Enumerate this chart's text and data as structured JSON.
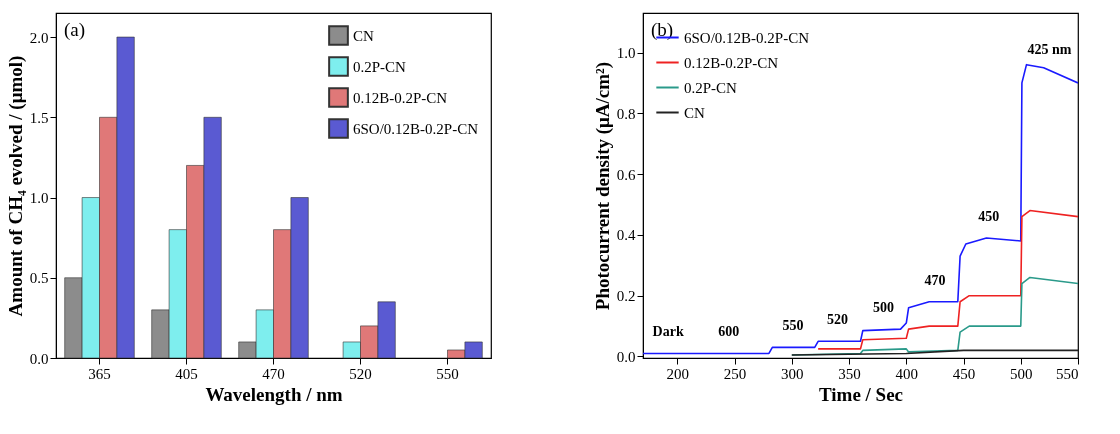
{
  "chart_data": [
    {
      "type": "bar",
      "xlabel": "Wavelength / nm",
      "ylabel": "Amount of CH₄ evolved / (μmol)",
      "categories": [
        "365",
        "405",
        "470",
        "520",
        "550"
      ],
      "series": [
        {
          "name": "CN",
          "color": "#8c8c8c",
          "values": [
            0.5,
            0.3,
            0.1,
            null,
            null
          ]
        },
        {
          "name": "0.2P-CN",
          "color": "#7eeeee",
          "values": [
            1.0,
            0.8,
            0.3,
            0.1,
            null
          ]
        },
        {
          "name": "0.12B-0.2P-CN",
          "color": "#e07878",
          "values": [
            1.5,
            1.2,
            0.8,
            0.2,
            0.05
          ]
        },
        {
          "name": "6SO/0.12B-0.2P-CN",
          "color": "#5a5ad2",
          "values": [
            2.0,
            1.5,
            1.0,
            0.35,
            0.1
          ]
        }
      ],
      "ylim": [
        0,
        2.15
      ],
      "yticks": [
        {
          "value": 0,
          "label": "0.0"
        },
        {
          "value": 0.5,
          "label": "0.5"
        },
        {
          "value": 1,
          "label": "1.0"
        },
        {
          "value": 1.5,
          "label": "1.5"
        },
        {
          "value": 2,
          "label": "2.0"
        }
      ],
      "grid": false,
      "legend": "top right",
      "annotations": [
        "(a)"
      ]
    },
    {
      "type": "line",
      "xlabel": "Time / Sec",
      "ylabel": "Photocurrent density (μA/cm²)",
      "series": [
        {
          "name": "6SO/0.12B-0.2P-CN",
          "color": "#1a1aff",
          "x": [
            170,
            280,
            283,
            320,
            323,
            360,
            362,
            395,
            400,
            402,
            420,
            445,
            447,
            452,
            470,
            500,
            501,
            505,
            520,
            550
          ],
          "values": [
            0.01,
            0.01,
            0.03,
            0.03,
            0.05,
            0.05,
            0.085,
            0.09,
            0.11,
            0.16,
            0.18,
            0.18,
            0.33,
            0.37,
            0.39,
            0.38,
            0.9,
            0.96,
            0.95,
            0.9
          ]
        },
        {
          "name": "0.12B-0.2P-CN",
          "color": "#ee2222",
          "x": [
            323,
            360,
            362,
            400,
            402,
            420,
            445,
            447,
            455,
            500,
            501,
            508,
            550
          ],
          "values": [
            0.025,
            0.025,
            0.055,
            0.06,
            0.09,
            0.1,
            0.1,
            0.18,
            0.2,
            0.2,
            0.46,
            0.48,
            0.46
          ]
        },
        {
          "name": "0.2P-CN",
          "color": "#2a9a8a",
          "x": [
            300,
            360,
            362,
            400,
            402,
            445,
            447,
            455,
            500,
            501,
            508,
            550
          ],
          "values": [
            0.005,
            0.01,
            0.02,
            0.025,
            0.015,
            0.02,
            0.08,
            0.1,
            0.1,
            0.24,
            0.26,
            0.24
          ]
        },
        {
          "name": "CN",
          "color": "#222222",
          "x": [
            300,
            400,
            450,
            550
          ],
          "values": [
            0.005,
            0.01,
            0.02,
            0.02
          ]
        }
      ],
      "xlim": [
        170,
        550
      ],
      "xticks": [
        200,
        250,
        300,
        350,
        400,
        450,
        500,
        550
      ],
      "ylim": [
        -0.005,
        1.13
      ],
      "yticks": [
        {
          "value": 0,
          "label": "0.0"
        },
        {
          "value": 0.2,
          "label": "0.2"
        },
        {
          "value": 0.4,
          "label": "0.4"
        },
        {
          "value": 0.6,
          "label": "0.6"
        },
        {
          "value": 0.8,
          "label": "0.8"
        },
        {
          "value": 1,
          "label": "1.0"
        }
      ],
      "grid": false,
      "legend": "top left",
      "marker": "none",
      "line_style": "solid",
      "annotations": [
        "(b)",
        {
          "text": "Dark",
          "x": 192,
          "y": 0.01
        },
        {
          "text": "600",
          "x": 245,
          "y": 0.01
        },
        {
          "text": "550",
          "x": 301,
          "y": 0.03
        },
        {
          "text": "520",
          "x": 340,
          "y": 0.05
        },
        {
          "text": "500",
          "x": 380,
          "y": 0.09
        },
        {
          "text": "470",
          "x": 425,
          "y": 0.18
        },
        {
          "text": "450",
          "x": 472,
          "y": 0.39
        },
        {
          "text": "425 nm",
          "x": 525,
          "y": 0.94
        }
      ]
    }
  ]
}
